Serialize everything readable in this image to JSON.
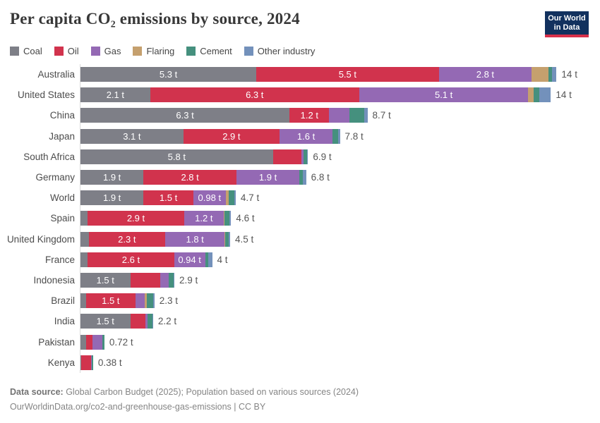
{
  "header": {
    "title": "Per capita CO₂ emissions by source, 2024",
    "logo": {
      "line1": "Our World",
      "line2": "in Data",
      "bg_color": "#12315e",
      "strip_color": "#d8304a"
    }
  },
  "legend": [
    {
      "key": "coal",
      "label": "Coal"
    },
    {
      "key": "oil",
      "label": "Oil"
    },
    {
      "key": "gas",
      "label": "Gas"
    },
    {
      "key": "flaring",
      "label": "Flaring"
    },
    {
      "key": "cement",
      "label": "Cement"
    },
    {
      "key": "other",
      "label": "Other industry"
    }
  ],
  "chart_data": {
    "type": "bar",
    "orientation": "horizontal",
    "title": "Per capita CO₂ emissions by source, 2024",
    "unit": "tonnes of CO₂ per person",
    "legend_position": "top",
    "grid": false,
    "xlim": [
      0,
      14.6
    ],
    "colors": {
      "coal": "#7e7f87",
      "oil": "#d1334d",
      "gas": "#9469b4",
      "flaring": "#c5a06e",
      "cement": "#45907e",
      "other": "#7391bb"
    },
    "rows": [
      {
        "country": "Australia",
        "total_label": "14 t",
        "segments": [
          {
            "key": "coal",
            "value": 5.3,
            "label": "5.3 t"
          },
          {
            "key": "oil",
            "value": 5.5,
            "label": "5.5 t"
          },
          {
            "key": "gas",
            "value": 2.8,
            "label": "2.8 t"
          },
          {
            "key": "flaring",
            "value": 0.5
          },
          {
            "key": "cement",
            "value": 0.12
          },
          {
            "key": "other",
            "value": 0.13
          }
        ]
      },
      {
        "country": "United States",
        "total_label": "14 t",
        "segments": [
          {
            "key": "coal",
            "value": 2.1,
            "label": "2.1 t"
          },
          {
            "key": "oil",
            "value": 6.3,
            "label": "6.3 t"
          },
          {
            "key": "gas",
            "value": 5.1,
            "label": "5.1 t"
          },
          {
            "key": "flaring",
            "value": 0.17
          },
          {
            "key": "cement",
            "value": 0.17
          },
          {
            "key": "other",
            "value": 0.34
          }
        ]
      },
      {
        "country": "China",
        "total_label": "8.7 t",
        "segments": [
          {
            "key": "coal",
            "value": 6.3,
            "label": "6.3 t"
          },
          {
            "key": "oil",
            "value": 1.2,
            "label": "1.2 t"
          },
          {
            "key": "gas",
            "value": 0.6
          },
          {
            "key": "cement",
            "value": 0.45
          },
          {
            "key": "other",
            "value": 0.1
          }
        ]
      },
      {
        "country": "Japan",
        "total_label": "7.8 t",
        "segments": [
          {
            "key": "coal",
            "value": 3.1,
            "label": "3.1 t"
          },
          {
            "key": "oil",
            "value": 2.9,
            "label": "2.9 t"
          },
          {
            "key": "gas",
            "value": 1.6,
            "label": "1.6 t"
          },
          {
            "key": "cement",
            "value": 0.17
          },
          {
            "key": "other",
            "value": 0.05
          }
        ]
      },
      {
        "country": "South Africa",
        "total_label": "6.9 t",
        "segments": [
          {
            "key": "coal",
            "value": 5.8,
            "label": "5.8 t"
          },
          {
            "key": "oil",
            "value": 0.85
          },
          {
            "key": "gas",
            "value": 0.08
          },
          {
            "key": "cement",
            "value": 0.1
          },
          {
            "key": "other",
            "value": 0.03
          }
        ]
      },
      {
        "country": "Germany",
        "total_label": "6.8 t",
        "segments": [
          {
            "key": "coal",
            "value": 1.9,
            "label": "1.9 t"
          },
          {
            "key": "oil",
            "value": 2.8,
            "label": "2.8 t"
          },
          {
            "key": "gas",
            "value": 1.9,
            "label": "1.9 t"
          },
          {
            "key": "cement",
            "value": 0.1
          },
          {
            "key": "other",
            "value": 0.1
          }
        ]
      },
      {
        "country": "World",
        "total_label": "4.7 t",
        "segments": [
          {
            "key": "coal",
            "value": 1.9,
            "label": "1.9 t"
          },
          {
            "key": "oil",
            "value": 1.5,
            "label": "1.5 t"
          },
          {
            "key": "gas",
            "value": 0.98,
            "label": "0.98 t"
          },
          {
            "key": "flaring",
            "value": 0.09
          },
          {
            "key": "cement",
            "value": 0.16
          },
          {
            "key": "other",
            "value": 0.05
          }
        ]
      },
      {
        "country": "Spain",
        "total_label": "4.6 t",
        "segments": [
          {
            "key": "coal",
            "value": 0.22
          },
          {
            "key": "oil",
            "value": 2.9,
            "label": "2.9 t"
          },
          {
            "key": "gas",
            "value": 1.2,
            "label": "1.2 t"
          },
          {
            "key": "flaring",
            "value": 0.03
          },
          {
            "key": "cement",
            "value": 0.15
          },
          {
            "key": "other",
            "value": 0.04
          }
        ]
      },
      {
        "country": "United Kingdom",
        "total_label": "4.5 t",
        "segments": [
          {
            "key": "coal",
            "value": 0.25
          },
          {
            "key": "oil",
            "value": 2.3,
            "label": "2.3 t"
          },
          {
            "key": "gas",
            "value": 1.8,
            "label": "1.8 t"
          },
          {
            "key": "flaring",
            "value": 0.02
          },
          {
            "key": "cement",
            "value": 0.09
          },
          {
            "key": "other",
            "value": 0.05
          }
        ]
      },
      {
        "country": "France",
        "total_label": "4 t",
        "segments": [
          {
            "key": "coal",
            "value": 0.22
          },
          {
            "key": "oil",
            "value": 2.6,
            "label": "2.6 t"
          },
          {
            "key": "gas",
            "value": 0.94,
            "label": "0.94 t"
          },
          {
            "key": "cement",
            "value": 0.1
          },
          {
            "key": "other",
            "value": 0.11
          }
        ]
      },
      {
        "country": "Indonesia",
        "total_label": "2.9 t",
        "segments": [
          {
            "key": "coal",
            "value": 1.5,
            "label": "1.5 t"
          },
          {
            "key": "oil",
            "value": 0.9
          },
          {
            "key": "gas",
            "value": 0.25
          },
          {
            "key": "cement",
            "value": 0.15
          },
          {
            "key": "other",
            "value": 0.03
          }
        ]
      },
      {
        "country": "Brazil",
        "total_label": "2.3 t",
        "segments": [
          {
            "key": "coal",
            "value": 0.16
          },
          {
            "key": "oil",
            "value": 1.5,
            "label": "1.5 t"
          },
          {
            "key": "gas",
            "value": 0.28
          },
          {
            "key": "flaring",
            "value": 0.05
          },
          {
            "key": "cement",
            "value": 0.2
          },
          {
            "key": "other",
            "value": 0.04
          }
        ]
      },
      {
        "country": "India",
        "total_label": "2.2 t",
        "segments": [
          {
            "key": "coal",
            "value": 1.5,
            "label": "1.5 t"
          },
          {
            "key": "oil",
            "value": 0.45
          },
          {
            "key": "gas",
            "value": 0.08
          },
          {
            "key": "cement",
            "value": 0.13
          },
          {
            "key": "other",
            "value": 0.03
          }
        ]
      },
      {
        "country": "Pakistan",
        "total_label": "0.72 t",
        "segments": [
          {
            "key": "coal",
            "value": 0.17
          },
          {
            "key": "oil",
            "value": 0.2
          },
          {
            "key": "gas",
            "value": 0.3
          },
          {
            "key": "cement",
            "value": 0.05
          }
        ]
      },
      {
        "country": "Kenya",
        "total_label": "0.38 t",
        "segments": [
          {
            "key": "coal",
            "value": 0.03
          },
          {
            "key": "oil",
            "value": 0.29
          },
          {
            "key": "gas",
            "value": 0.01
          },
          {
            "key": "cement",
            "value": 0.05
          }
        ]
      }
    ]
  },
  "footer": {
    "source_label": "Data source:",
    "source_text": " Global Carbon Budget (2025); Population based on various sources (2024)",
    "note_line": "OurWorldinData.org/co2-and-greenhouse-gas-emissions | CC BY"
  }
}
